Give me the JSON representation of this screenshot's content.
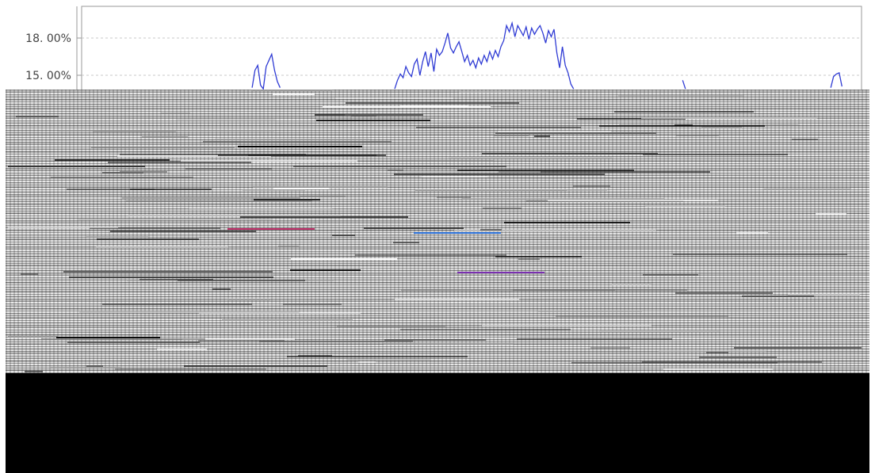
{
  "chart_data": {
    "type": "line",
    "title": "",
    "xlabel": "",
    "ylabel": "",
    "y_tick_labels": [
      "18. 00%",
      "15. 00%"
    ],
    "y_ticks": [
      18,
      15
    ],
    "grid": true,
    "line_color": "#2f3bd4",
    "series": [
      {
        "values": [
          null,
          null,
          null,
          null,
          null,
          null,
          null,
          null,
          null,
          null,
          null,
          null,
          null,
          null,
          null,
          null,
          null,
          null,
          null,
          null,
          null,
          null,
          null,
          null,
          null,
          null,
          null,
          null,
          null,
          null,
          null,
          null,
          null,
          null,
          null,
          null,
          null,
          null,
          null,
          null,
          null,
          null,
          null,
          null,
          null,
          null,
          null,
          null,
          null,
          null,
          null,
          null,
          null,
          null,
          null,
          null,
          null,
          null,
          null,
          null,
          null,
          14.0,
          15.4,
          15.8,
          14.2,
          13.9,
          15.7,
          16.2,
          16.7,
          15.4,
          14.5,
          14.0,
          null,
          null,
          null,
          null,
          null,
          null,
          null,
          null,
          null,
          null,
          null,
          null,
          null,
          null,
          null,
          null,
          null,
          null,
          null,
          null,
          null,
          null,
          null,
          null,
          null,
          null,
          null,
          null,
          null,
          null,
          null,
          null,
          null,
          null,
          null,
          null,
          null,
          null,
          null,
          null,
          13.9,
          14.6,
          15.1,
          14.8,
          15.7,
          15.2,
          14.9,
          15.9,
          16.3,
          15.0,
          16.1,
          16.9,
          15.7,
          16.8,
          15.3,
          17.1,
          16.6,
          16.9,
          17.6,
          18.4,
          17.2,
          16.8,
          17.3,
          17.7,
          16.9,
          16.1,
          16.6,
          15.8,
          16.2,
          15.6,
          16.4,
          15.9,
          16.6,
          16.1,
          16.9,
          16.3,
          17.0,
          16.5,
          17.3,
          17.8,
          19.0,
          18.5,
          19.2,
          18.1,
          19.0,
          18.6,
          18.2,
          18.9,
          17.9,
          18.8,
          18.3,
          18.7,
          19.0,
          18.4,
          17.6,
          18.6,
          18.1,
          18.7,
          16.8,
          15.6,
          17.3,
          15.8,
          15.2,
          14.3,
          13.9,
          null,
          null,
          null,
          null,
          null,
          null,
          null,
          null,
          null,
          null,
          null,
          null,
          null,
          null,
          null,
          null,
          null,
          null,
          null,
          null,
          null,
          null,
          null,
          null,
          null,
          null,
          null,
          null,
          null,
          null,
          null,
          null,
          null,
          null,
          null,
          null,
          null,
          null,
          14.6,
          13.9,
          null,
          null,
          null,
          null,
          null,
          null,
          null,
          null,
          null,
          null,
          null,
          null,
          null,
          null,
          null,
          null,
          null,
          null,
          null,
          null,
          null,
          null,
          null,
          null,
          null,
          null,
          null,
          null,
          null,
          null,
          null,
          null,
          null,
          null,
          null,
          null,
          null,
          null,
          null,
          null,
          null,
          null,
          null,
          null,
          null,
          null,
          null,
          null,
          null,
          null,
          null,
          14.0,
          14.9,
          15.1,
          15.2,
          14.1,
          null,
          null,
          null,
          null,
          null,
          null,
          null
        ]
      }
    ]
  }
}
